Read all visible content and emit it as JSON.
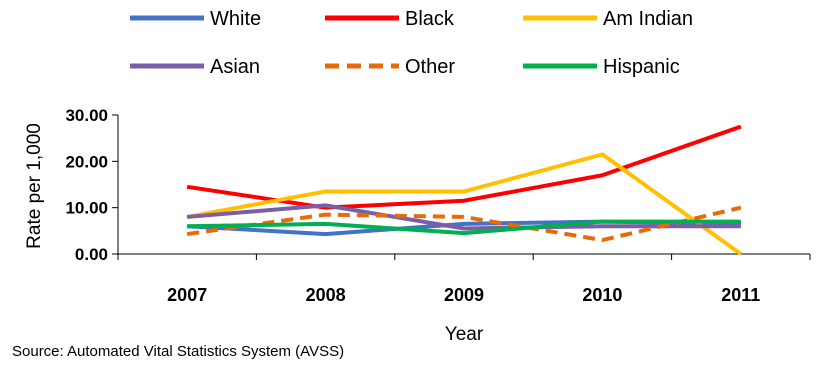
{
  "chart_data": {
    "type": "line",
    "title": "",
    "xlabel": "Year",
    "ylabel": "Rate per 1,000",
    "categories": [
      "2007",
      "2008",
      "2009",
      "2010",
      "2011"
    ],
    "yticks": [
      "0.00",
      "10.00",
      "20.00",
      "30.00"
    ],
    "ylim": [
      0,
      30
    ],
    "grid": false,
    "legend_position": "top",
    "series": [
      {
        "name": "White",
        "color": "#4472C4",
        "dash": "solid",
        "values": [
          6.0,
          4.3,
          6.5,
          7.0,
          6.5
        ]
      },
      {
        "name": "Black",
        "color": "#FF0000",
        "dash": "solid",
        "values": [
          14.5,
          10.0,
          11.5,
          17.0,
          27.5
        ]
      },
      {
        "name": "Am Indian",
        "color": "#FFC000",
        "dash": "solid",
        "values": [
          8.0,
          13.5,
          13.5,
          21.5,
          0.0
        ]
      },
      {
        "name": "Asian",
        "color": "#7B5EA7",
        "dash": "solid",
        "values": [
          8.0,
          10.5,
          5.5,
          6.0,
          6.0
        ]
      },
      {
        "name": "Other",
        "color": "#E46C0A",
        "dash": "dashed",
        "values": [
          4.3,
          8.5,
          8.0,
          3.0,
          10.0
        ]
      },
      {
        "name": "Hispanic",
        "color": "#00B050",
        "dash": "solid",
        "values": [
          6.0,
          6.5,
          4.5,
          7.0,
          7.0
        ]
      }
    ]
  },
  "source": "Source: Automated Vital Statistics System (AVSS)"
}
